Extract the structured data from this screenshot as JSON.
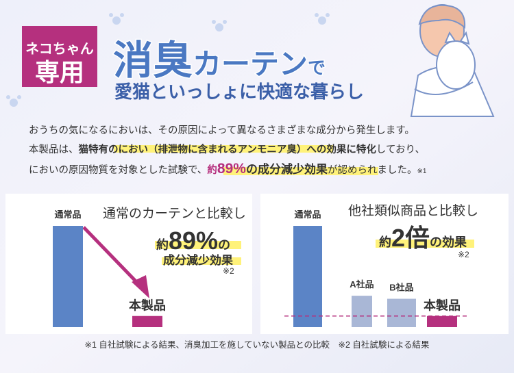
{
  "badge": [
    "ネコちゃん",
    "専用"
  ],
  "title": {
    "main": "消臭",
    "sub": "カーテン",
    "tail": "で"
  },
  "subtitle": "愛猫といっしょに快適な暮らし",
  "body": {
    "line1": "おうちの気になるにおいは、その原因によって異なるさまざまな成分から発生します。",
    "line2": [
      "本製品は、",
      "猫特有のにおい（排泄物に含まれるアンモニア臭）への効果に特化",
      "しており、"
    ],
    "line3": [
      "においの原因物質を対象とした試験で、",
      "約",
      "89%",
      "の成分減少効果",
      "が認められました。",
      "※1"
    ]
  },
  "chart_data": [
    {
      "type": "bar",
      "title": "通常のカーテンと比較し",
      "callout": [
        "約",
        "89%",
        "の",
        "成分減少効果"
      ],
      "note": "※2",
      "categories": [
        "通常品",
        "本製品"
      ],
      "values": [
        100,
        11
      ],
      "colors": [
        "#5b84c6",
        "#b5307e"
      ]
    },
    {
      "type": "bar",
      "title": "他社類似商品と比較し",
      "callout": [
        "約",
        "2倍",
        "の効果"
      ],
      "note": "※2",
      "categories": [
        "通常品",
        "A社品",
        "B社品",
        "本製品"
      ],
      "values": [
        100,
        31,
        28,
        11
      ],
      "colors": [
        "#5b84c6",
        "#a9b7d6",
        "#a9b7d6",
        "#b5307e"
      ]
    }
  ],
  "footnote": "※1 自社試験による結果、消臭加工を施していない製品との比較　※2 自社試験による結果"
}
